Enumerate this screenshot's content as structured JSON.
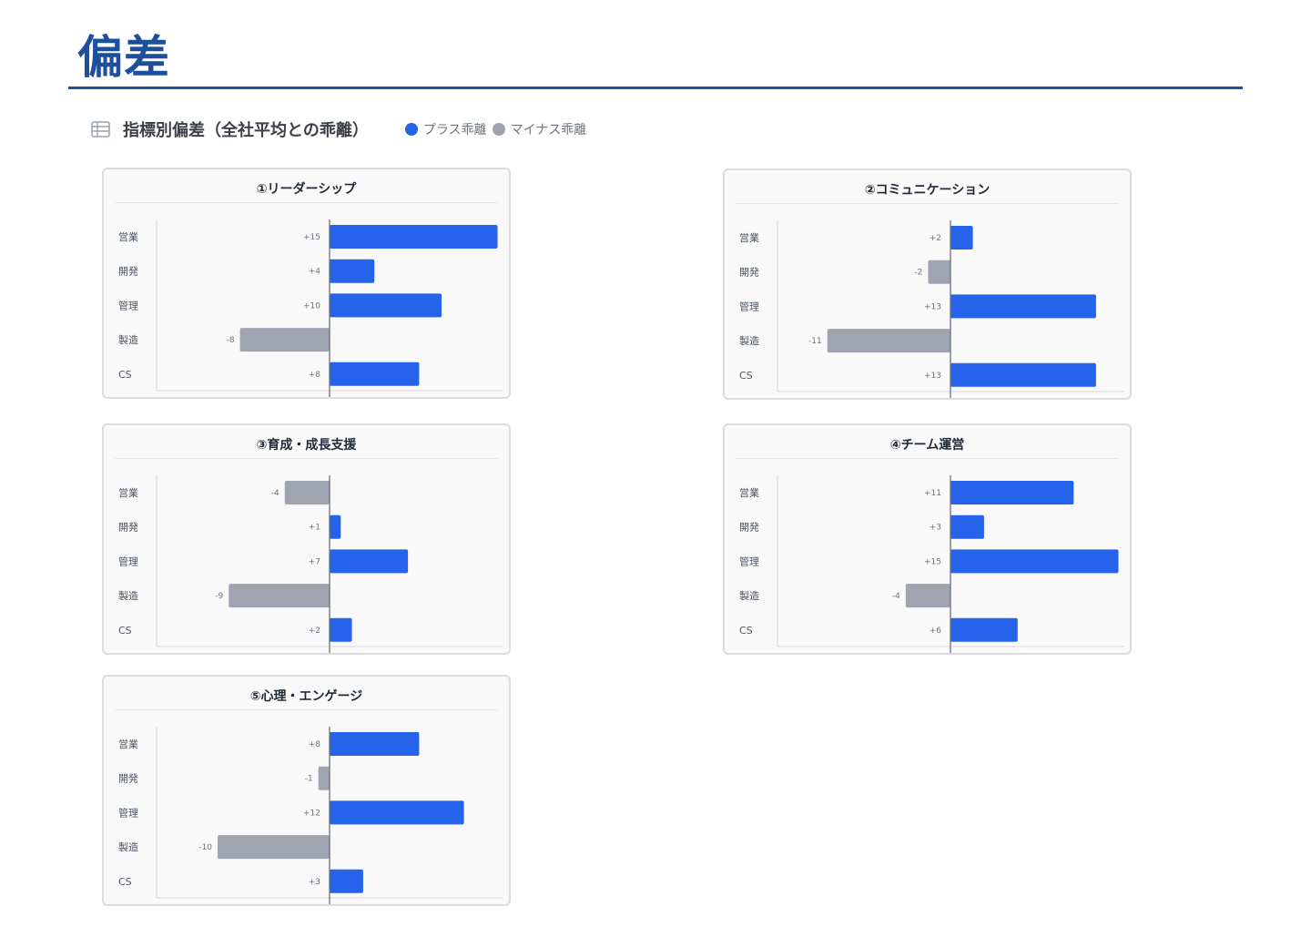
{
  "page": {
    "title": "偏差"
  },
  "section": {
    "title": "指標別偏差（全社平均との乖離）",
    "legend": [
      {
        "label": "プラス乖離",
        "color": "#2563eb"
      },
      {
        "label": "マイナス乖離",
        "color": "#9ca3af"
      }
    ],
    "icon": "table-icon"
  },
  "colors": {
    "positive": "#2563eb",
    "negative": "#a0a4b0",
    "axis": "#6b6f78",
    "title_blue": "#1d4f9c"
  },
  "chart_data": [
    {
      "type": "bar",
      "orientation": "horizontal",
      "title": "①リーダーシップ",
      "categories": [
        "営業",
        "開発",
        "管理",
        "製造",
        "CS"
      ],
      "values": [
        15,
        4,
        10,
        -8,
        8
      ],
      "labels": [
        "+15",
        "+4",
        "+10",
        "-8",
        "+8"
      ]
    },
    {
      "type": "bar",
      "orientation": "horizontal",
      "title": "②コミュニケーション",
      "categories": [
        "営業",
        "開発",
        "管理",
        "製造",
        "CS"
      ],
      "values": [
        2,
        -2,
        13,
        -11,
        13
      ],
      "labels": [
        "+2",
        "-2",
        "+13",
        "-11",
        "+13"
      ]
    },
    {
      "type": "bar",
      "orientation": "horizontal",
      "title": "③育成・成長支援",
      "categories": [
        "営業",
        "開発",
        "管理",
        "製造",
        "CS"
      ],
      "values": [
        -4,
        1,
        7,
        -9,
        2
      ],
      "labels": [
        "-4",
        "+1",
        "+7",
        "-9",
        "+2"
      ]
    },
    {
      "type": "bar",
      "orientation": "horizontal",
      "title": "④チーム運営",
      "categories": [
        "営業",
        "開発",
        "管理",
        "製造",
        "CS"
      ],
      "values": [
        11,
        3,
        15,
        -4,
        6
      ],
      "labels": [
        "+11",
        "+3",
        "+15",
        "-4",
        "+6"
      ]
    },
    {
      "type": "bar",
      "orientation": "horizontal",
      "title": "⑤心理・エンゲージ",
      "categories": [
        "営業",
        "開発",
        "管理",
        "製造",
        "CS"
      ],
      "values": [
        8,
        -1,
        12,
        -10,
        3
      ],
      "labels": [
        "+8",
        "-1",
        "+12",
        "-10",
        "+3"
      ]
    }
  ]
}
